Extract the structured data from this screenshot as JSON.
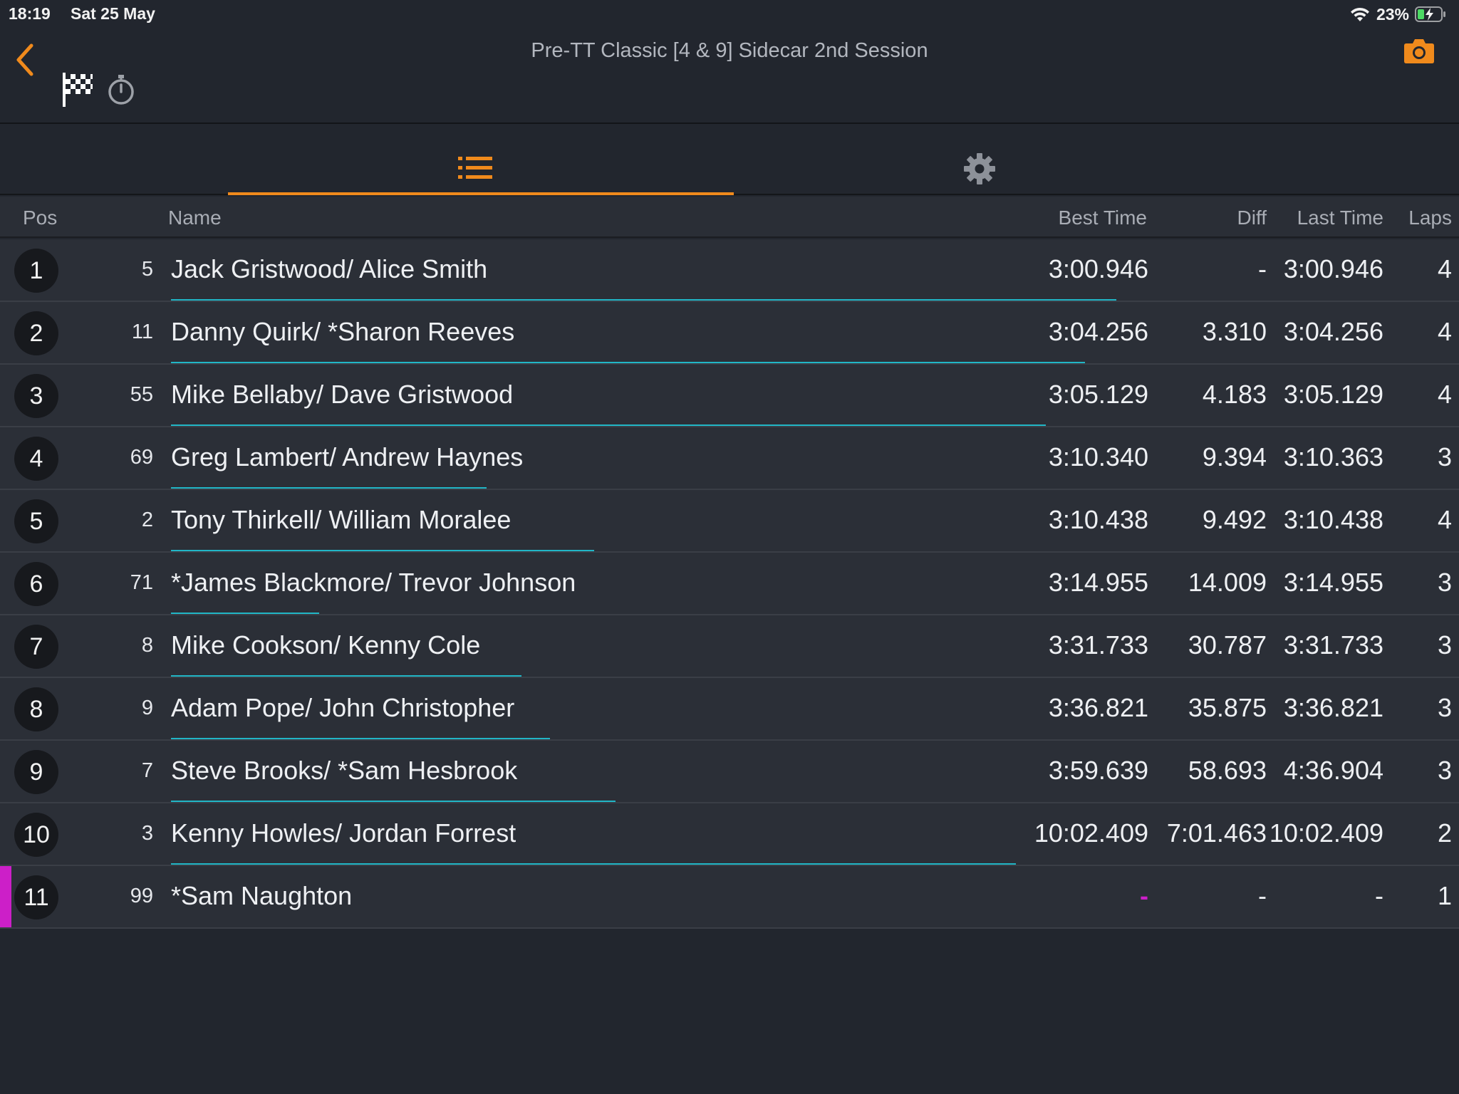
{
  "status_bar": {
    "time": "18:19",
    "date": "Sat 25 May",
    "battery": "23%"
  },
  "header": {
    "title": "Pre-TT Classic [4 & 9] Sidecar 2nd Session",
    "accent_color": "#f08a1c"
  },
  "tabs": [
    {
      "icon": "list-icon",
      "selected": true
    },
    {
      "icon": "gear-icon",
      "selected": false
    }
  ],
  "columns": {
    "pos": "Pos",
    "name": "Name",
    "best_time": "Best Time",
    "diff": "Diff",
    "last_time": "Last Time",
    "laps": "Laps"
  },
  "rows": [
    {
      "pos": "1",
      "number": "5",
      "name": "Jack Gristwood/ Alice Smith",
      "best": "3:00.946",
      "diff": "-",
      "last": "3:00.946",
      "laps": "4",
      "progress": 0.766
    },
    {
      "pos": "2",
      "number": "11",
      "name": "Danny Quirk/ *Sharon Reeves",
      "best": "3:04.256",
      "diff": "3.310",
      "last": "3:04.256",
      "laps": "4",
      "progress": 0.741
    },
    {
      "pos": "3",
      "number": "55",
      "name": "Mike Bellaby/ Dave Gristwood",
      "best": "3:05.129",
      "diff": "4.183",
      "last": "3:05.129",
      "laps": "4",
      "progress": 0.709
    },
    {
      "pos": "4",
      "number": "69",
      "name": "Greg Lambert/ Andrew Haynes",
      "best": "3:10.340",
      "diff": "9.394",
      "last": "3:10.363",
      "laps": "3",
      "progress": 0.256
    },
    {
      "pos": "5",
      "number": "2",
      "name": "Tony Thirkell/ William Moralee",
      "best": "3:10.438",
      "diff": "9.492",
      "last": "3:10.438",
      "laps": "4",
      "progress": 0.343
    },
    {
      "pos": "6",
      "number": "71",
      "name": "*James Blackmore/ Trevor Johnson",
      "best": "3:14.955",
      "diff": "14.009",
      "last": "3:14.955",
      "laps": "3",
      "progress": 0.12
    },
    {
      "pos": "7",
      "number": "8",
      "name": "Mike Cookson/ Kenny Cole",
      "best": "3:31.733",
      "diff": "30.787",
      "last": "3:31.733",
      "laps": "3",
      "progress": 0.284
    },
    {
      "pos": "8",
      "number": "9",
      "name": "Adam Pope/ John Christopher",
      "best": "3:36.821",
      "diff": "35.875",
      "last": "3:36.821",
      "laps": "3",
      "progress": 0.307
    },
    {
      "pos": "9",
      "number": "7",
      "name": "Steve Brooks/ *Sam Hesbrook",
      "best": "3:59.639",
      "diff": "58.693",
      "last": "4:36.904",
      "laps": "3",
      "progress": 0.36
    },
    {
      "pos": "10",
      "number": "3",
      "name": "Kenny Howles/ Jordan Forrest",
      "best": "10:02.409",
      "diff": "7:01.463",
      "last": "10:02.409",
      "laps": "2",
      "progress": 0.685
    },
    {
      "pos": "11",
      "number": "99",
      "name": "*Sam Naughton",
      "best": "-",
      "diff": "-",
      "last": "-",
      "laps": "1",
      "progress": 0,
      "marker_color": "#cc1fc8",
      "best_color": "#cc1fc8"
    }
  ]
}
